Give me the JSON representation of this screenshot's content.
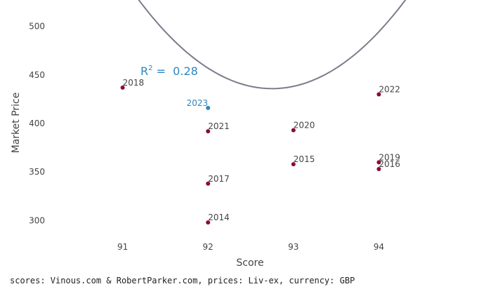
{
  "chart_data": {
    "type": "scatter",
    "xlabel": "Score",
    "ylabel": "Market Price",
    "xlim": [
      90,
      95
    ],
    "ylim": [
      280,
      520
    ],
    "x_ticks": [
      91,
      92,
      93,
      94
    ],
    "y_ticks": [
      300,
      350,
      400,
      450,
      500
    ],
    "grid": false,
    "points": [
      {
        "label": "2018",
        "x": 91,
        "y": 437
      },
      {
        "label": "2021",
        "x": 92,
        "y": 392
      },
      {
        "label": "2017",
        "x": 92,
        "y": 338
      },
      {
        "label": "2014",
        "x": 92,
        "y": 298
      },
      {
        "label": "2020",
        "x": 93,
        "y": 393
      },
      {
        "label": "2015",
        "x": 93,
        "y": 358
      },
      {
        "label": "2022",
        "x": 94,
        "y": 430
      },
      {
        "label": "2019",
        "x": 94,
        "y": 360
      },
      {
        "label": "2016",
        "x": 94,
        "y": 353
      }
    ],
    "highlight_point": {
      "label": "2023",
      "x": 92,
      "y": 416
    },
    "trendline": {
      "type": "quadratic",
      "r2_label": "R",
      "r2_sup": "2",
      "r2_eq": " =  ",
      "r2_value": "0.28",
      "x_from": 90.4,
      "x_to": 94.9,
      "a": 37.5,
      "b": -6956.25,
      "c": 323032
    },
    "colors": {
      "point": "#8b0a36",
      "highlight": "#2e86c1",
      "trendline": "#7d7a8c",
      "text": "#444444"
    }
  },
  "footer": "scores: Vinous.com & RobertParker.com, prices: Liv-ex, currency: GBP"
}
